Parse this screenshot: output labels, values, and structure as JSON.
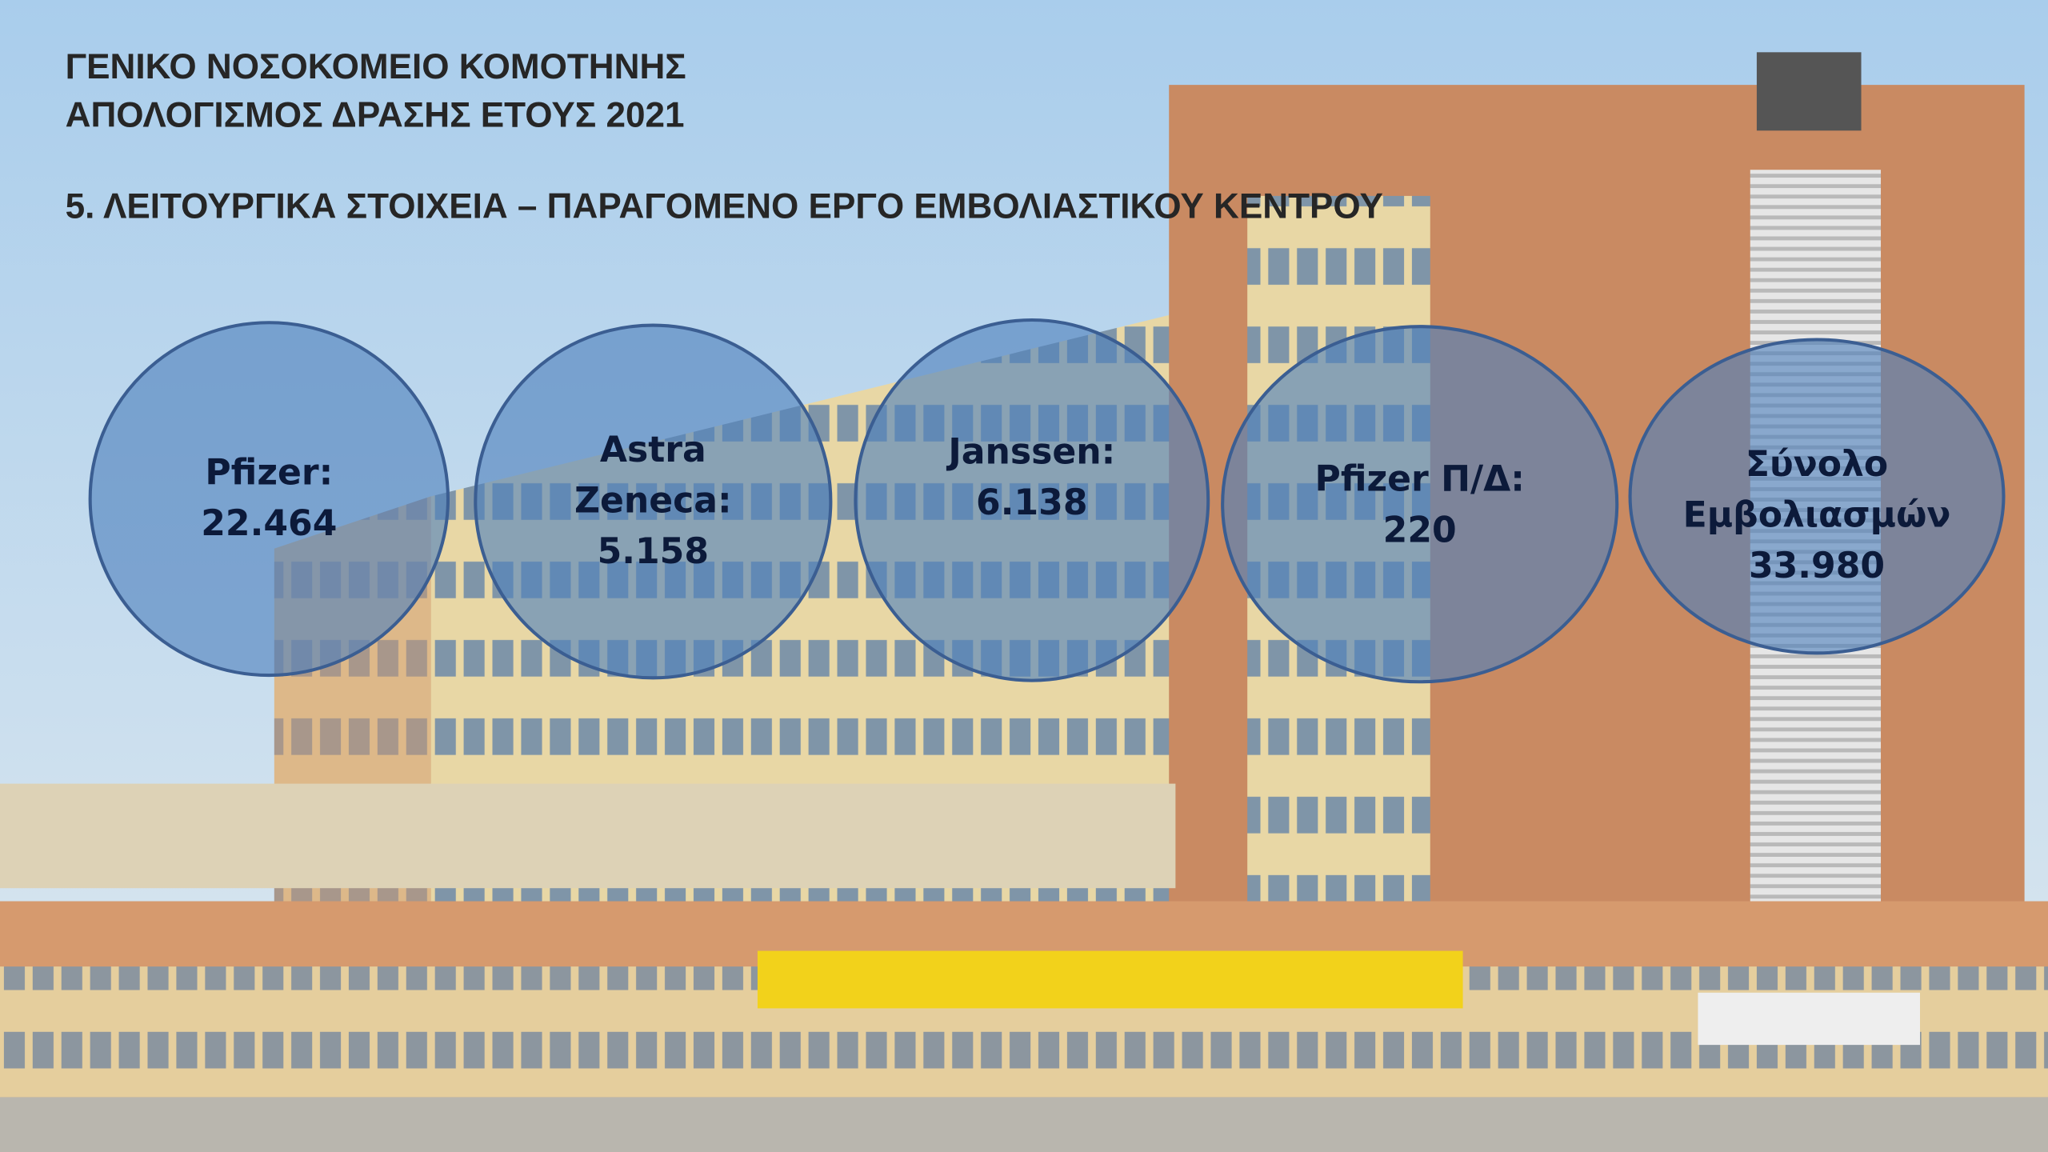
{
  "header": {
    "hospital": "ΓΕΝΙΚΟ ΝΟΣΟΚΟΜΕΙΟ ΚΟΜΟΤΗΝΗΣ",
    "report": "ΑΠΟΛΟΓΙΣΜΟΣ ΔΡΑΣΗΣ ΕΤΟΥΣ 2021",
    "section": "5. ΛΕΙΤΟΥΡΓΙΚΑ ΣΤΟΙΧΕΙΑ – ΠΑΡΑΓΟΜΕΝΟ ΕΡΓΟ ΕΜΒΟΛΙΑΣΤΙΚΟΥ ΚΕΝΤΡΟΥ"
  },
  "circles": [
    {
      "lines": [
        "Pfizer:",
        "22.464"
      ]
    },
    {
      "lines": [
        "Astra",
        "Zeneca:",
        "5.158"
      ]
    },
    {
      "lines": [
        "Janssen:",
        "6.138"
      ]
    },
    {
      "lines": [
        "Pfizer Π/Δ:",
        "220"
      ]
    },
    {
      "lines": [
        "Σύνολο",
        "Εμβολιασμών",
        "33.980"
      ]
    }
  ]
}
